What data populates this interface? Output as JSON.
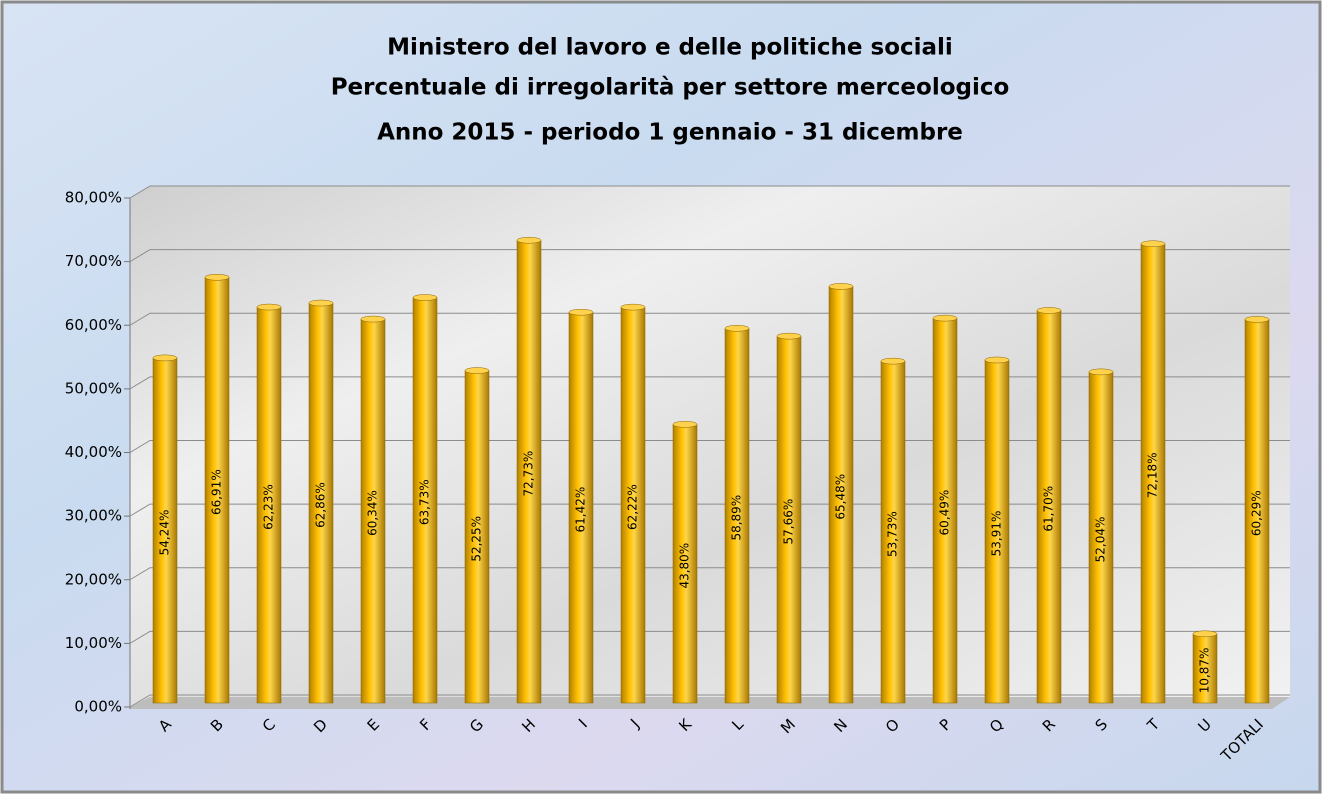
{
  "chart_data": {
    "type": "bar",
    "title": [
      "Ministero del lavoro e delle politiche sociali",
      "Percentuale di irregolarità per settore merceologico"
    ],
    "subtitle": "Anno 2015 - periodo 1 gennaio - 31 dicembre",
    "categories": [
      "A",
      "B",
      "C",
      "D",
      "E",
      "F",
      "G",
      "H",
      "I",
      "J",
      "K",
      "L",
      "M",
      "N",
      "O",
      "P",
      "Q",
      "R",
      "S",
      "T",
      "U",
      "TOTALI"
    ],
    "values": [
      54.24,
      66.91,
      62.23,
      62.86,
      60.34,
      63.73,
      52.25,
      72.73,
      61.42,
      62.22,
      43.8,
      58.89,
      57.66,
      65.48,
      53.73,
      60.49,
      53.91,
      61.7,
      52.04,
      72.18,
      10.87,
      60.29
    ],
    "value_labels": [
      "54,24%",
      "66,91%",
      "62,23%",
      "62,86%",
      "60,34%",
      "63,73%",
      "52,25%",
      "72,73%",
      "61,42%",
      "62,22%",
      "43,80%",
      "58,89%",
      "57,66%",
      "65,48%",
      "53,73%",
      "60,49%",
      "53,91%",
      "61,70%",
      "52,04%",
      "72,18%",
      "10,87%",
      "60,29%"
    ],
    "color": "#ffc000",
    "ylim": [
      0,
      80
    ],
    "yticks": [
      {
        "value": 0,
        "label": "0,00%"
      },
      {
        "value": 10,
        "label": "10,00%"
      },
      {
        "value": 20,
        "label": "20,00%"
      },
      {
        "value": 30,
        "label": "30,00%"
      },
      {
        "value": 40,
        "label": "40,00%"
      },
      {
        "value": 50,
        "label": "50,00%"
      },
      {
        "value": 60,
        "label": "60,00%"
      },
      {
        "value": 70,
        "label": "70,00%"
      },
      {
        "value": 80,
        "label": "80,00%"
      }
    ],
    "grid": true
  }
}
